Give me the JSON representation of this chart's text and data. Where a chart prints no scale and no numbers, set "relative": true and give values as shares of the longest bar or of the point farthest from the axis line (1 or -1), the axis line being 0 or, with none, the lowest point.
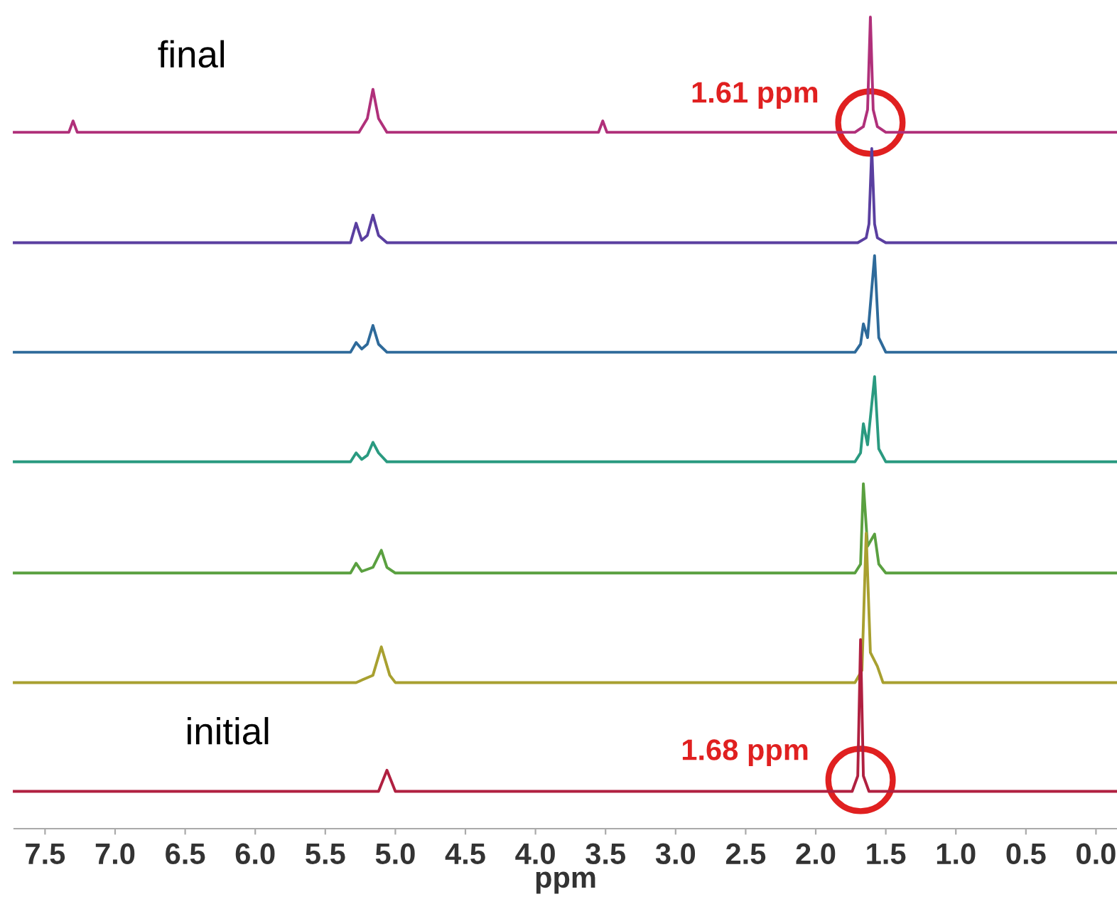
{
  "chart_data": {
    "type": "line",
    "relative": true,
    "tick_labels": "x",
    "xlim": [
      7.72,
      -0.15
    ],
    "xticks": [
      7.5,
      {
        "value": 7,
        "label": "7.0"
      },
      6.5,
      {
        "value": 6,
        "label": "6.0"
      },
      5.5,
      {
        "value": 5,
        "label": "5.0"
      },
      4.5,
      {
        "value": 4,
        "label": "4.0"
      },
      3.5,
      {
        "value": 3,
        "label": "3.0"
      },
      2.5,
      {
        "value": 2,
        "label": "2.0"
      },
      1.5,
      {
        "value": 1,
        "label": "1.0"
      },
      0.5,
      {
        "value": 0,
        "label": "0.0"
      }
    ],
    "xlabel": "ppm",
    "annotations": [
      "final",
      "initial",
      {
        "text": "1.61 ppm",
        "x": 1.61,
        "y": 0.87
      },
      {
        "text": "1.68 ppm",
        "x": 1.68,
        "y": 0.06
      }
    ],
    "series": [
      {
        "color": "#b0307a",
        "x": [
          7.72,
          7.33,
          7.3,
          7.27,
          5.26,
          5.2,
          5.16,
          5.12,
          5.06,
          3.55,
          3.52,
          3.49,
          1.72,
          1.66,
          1.63,
          1.61,
          1.59,
          1.56,
          1.5,
          -0.15
        ],
        "values": [
          0.858,
          0.858,
          0.872,
          0.858,
          0.858,
          0.875,
          0.911,
          0.875,
          0.858,
          0.858,
          0.872,
          0.858,
          0.858,
          0.865,
          0.886,
          1,
          0.886,
          0.865,
          0.858,
          0.858
        ]
      },
      {
        "color": "#5a3fa0",
        "x": [
          7.72,
          5.32,
          5.28,
          5.24,
          5.2,
          5.16,
          5.12,
          5.06,
          1.7,
          1.64,
          1.62,
          1.6,
          1.58,
          1.56,
          1.5,
          -0.15
        ],
        "values": [
          0.722,
          0.722,
          0.746,
          0.725,
          0.731,
          0.756,
          0.731,
          0.722,
          0.722,
          0.728,
          0.745,
          0.838,
          0.745,
          0.728,
          0.722,
          0.722
        ]
      },
      {
        "color": "#2e6a9a",
        "x": [
          7.72,
          5.32,
          5.28,
          5.24,
          5.2,
          5.16,
          5.12,
          5.06,
          1.72,
          1.68,
          1.66,
          1.63,
          1.58,
          1.55,
          1.5,
          -0.15
        ],
        "values": [
          0.587,
          0.587,
          0.599,
          0.591,
          0.597,
          0.62,
          0.597,
          0.587,
          0.587,
          0.597,
          0.622,
          0.605,
          0.706,
          0.605,
          0.587,
          0.587
        ]
      },
      {
        "color": "#2a9a80",
        "x": [
          7.72,
          5.32,
          5.28,
          5.24,
          5.2,
          5.16,
          5.12,
          5.06,
          1.72,
          1.68,
          1.66,
          1.63,
          1.58,
          1.55,
          1.5,
          -0.15
        ],
        "values": [
          0.452,
          0.452,
          0.463,
          0.455,
          0.46,
          0.476,
          0.463,
          0.452,
          0.452,
          0.463,
          0.499,
          0.473,
          0.557,
          0.468,
          0.452,
          0.452
        ]
      },
      {
        "color": "#5aa040",
        "x": [
          7.72,
          5.32,
          5.28,
          5.24,
          5.16,
          5.1,
          5.06,
          5.0,
          1.72,
          1.68,
          1.66,
          1.63,
          1.58,
          1.55,
          1.5,
          -0.15
        ],
        "values": [
          0.315,
          0.315,
          0.327,
          0.317,
          0.322,
          0.343,
          0.322,
          0.315,
          0.315,
          0.326,
          0.425,
          0.348,
          0.363,
          0.326,
          0.315,
          0.315
        ]
      },
      {
        "color": "#a8a030",
        "x": [
          7.72,
          5.28,
          5.16,
          5.1,
          5.04,
          5.0,
          1.72,
          1.67,
          1.64,
          1.61,
          1.56,
          1.52,
          -0.15
        ],
        "values": [
          0.18,
          0.18,
          0.189,
          0.224,
          0.189,
          0.18,
          0.18,
          0.195,
          0.364,
          0.217,
          0.2,
          0.18,
          0.18
        ]
      },
      {
        "color": "#b02040",
        "x": [
          7.72,
          5.12,
          5.06,
          5.0,
          1.74,
          1.7,
          1.68,
          1.66,
          1.62,
          -0.15
        ],
        "values": [
          0.046,
          0.046,
          0.072,
          0.046,
          0.046,
          0.065,
          0.233,
          0.065,
          0.046,
          0.046
        ]
      }
    ]
  }
}
